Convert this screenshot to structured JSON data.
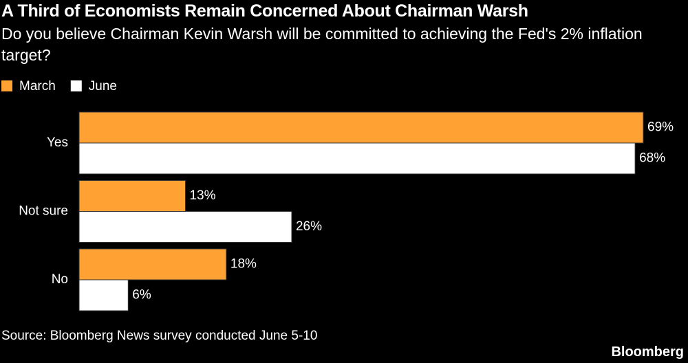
{
  "chart_data": {
    "type": "barh",
    "title": "A Third of Economists Remain Concerned About Chairman Warsh",
    "subtitle": "Do you believe Chairman Kevin Warsh will be committed to achieving the Fed's 2% inflation target?",
    "categories": [
      "Yes",
      "Not sure",
      "No"
    ],
    "series": [
      {
        "name": "March",
        "color": "#ffa133",
        "values": [
          69,
          13,
          18
        ],
        "value_labels": [
          "69%",
          "13%",
          "18%"
        ]
      },
      {
        "name": "June",
        "color": "#ffffff",
        "values": [
          68,
          26,
          6
        ],
        "value_labels": [
          "68%",
          "26%",
          "6%"
        ]
      }
    ],
    "legend": "top-left",
    "source": "Source: Bloomberg News survey conducted June 5-10",
    "brand": "Bloomberg"
  }
}
